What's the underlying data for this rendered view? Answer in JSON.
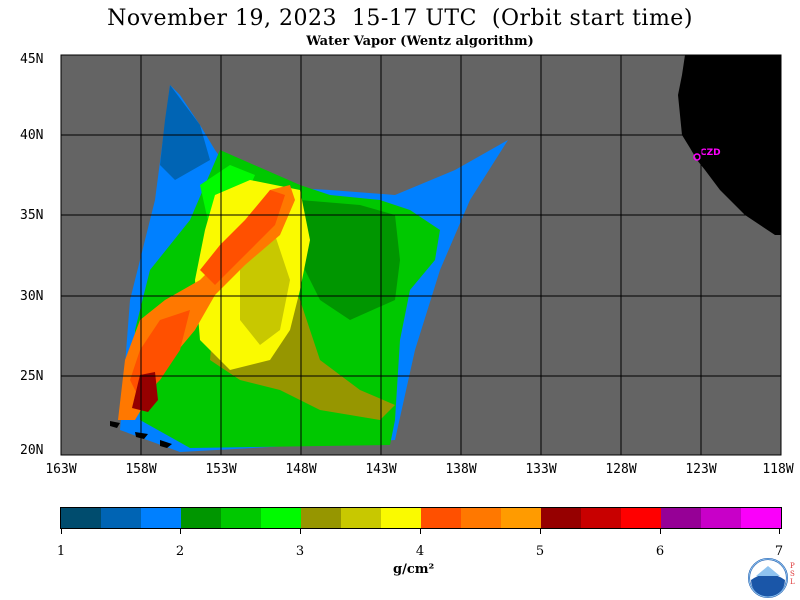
{
  "title": "November 19, 2023  15-17 UTC  (Orbit start time)",
  "subtitle": "Water Vapor (Wentz algorithm)",
  "map": {
    "lat_labels": [
      "45N",
      "40N",
      "35N",
      "30N",
      "25N",
      "20N"
    ],
    "lon_labels": [
      "163W",
      "158W",
      "153W",
      "148W",
      "143W",
      "138W",
      "133W",
      "128W",
      "123W",
      "118W"
    ],
    "station_label": "CZD",
    "colors": {
      "background": "#646464",
      "land": "#000000",
      "station": "#ff00ff"
    }
  },
  "colorbar": {
    "colors": [
      "#004c6e",
      "#0064b4",
      "#0080ff",
      "#009600",
      "#00c800",
      "#00fa00",
      "#969600",
      "#c8c800",
      "#fafa00",
      "#ff5000",
      "#ff7800",
      "#ff9b00",
      "#960000",
      "#c80000",
      "#ff0000",
      "#960096",
      "#c800c8",
      "#fa00fa"
    ],
    "tick_labels": [
      "1",
      "2",
      "3",
      "4",
      "5",
      "6",
      "7"
    ],
    "units": "g/cm²"
  },
  "logo": {
    "name": "noaa-logo",
    "side_text": "P S L"
  }
}
